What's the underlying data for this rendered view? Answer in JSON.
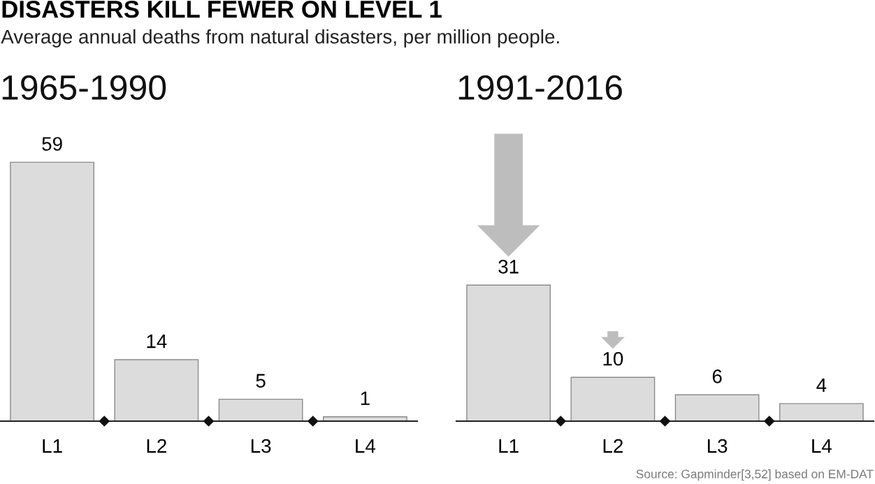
{
  "chart_data": [
    {
      "type": "other",
      "title": "DISASTERS KILL FEWER ON LEVEL 1",
      "subtitle": "Average annual deaths from natural disasters, per million people."
    },
    {
      "type": "bar",
      "title": "1965-1990",
      "categories": [
        "L1",
        "L2",
        "L3",
        "L4"
      ],
      "values": [
        59,
        14,
        5,
        1
      ],
      "color": "#dcdcdc",
      "tick_labels": "x",
      "data_labels": true
    },
    {
      "type": "bar",
      "title": "1991-2016",
      "categories": [
        "L1",
        "L2",
        "L3",
        "L4"
      ],
      "values": [
        31,
        10,
        6,
        4
      ],
      "color": "#dcdcdc",
      "tick_labels": "x",
      "data_labels": true,
      "annotations": [
        "Source: Gapminder[3,52] based on EM-DAT"
      ]
    }
  ]
}
